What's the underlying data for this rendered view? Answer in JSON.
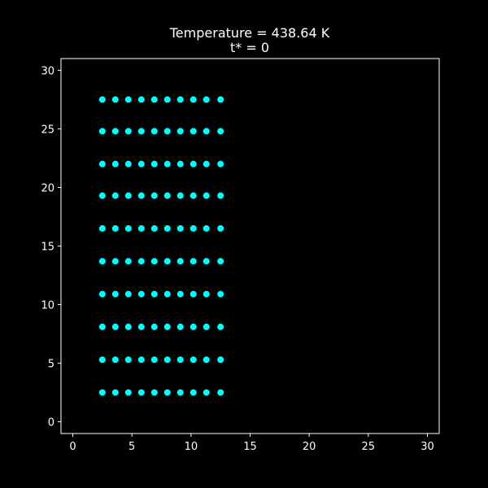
{
  "chart_data": {
    "type": "scatter",
    "title": "Temperature = 438.64 K",
    "subtitle": "t* = 0",
    "xlabel": "",
    "ylabel": "",
    "xlim": [
      -1,
      31
    ],
    "ylim": [
      -1,
      31
    ],
    "xticks": [
      0,
      5,
      10,
      15,
      20,
      25,
      30
    ],
    "yticks": [
      0,
      5,
      10,
      15,
      20,
      25,
      30
    ],
    "grid": false,
    "colors": {
      "background": "#000000",
      "axes": "#ffffff",
      "text": "#ffffff",
      "points": "#00ffff"
    },
    "series": [
      {
        "x_values": [
          2.5,
          3.6,
          4.7,
          5.8,
          6.9,
          8.0,
          9.1,
          10.2,
          11.3,
          12.5
        ],
        "y_values": [
          2.5,
          5.3,
          8.1,
          10.9,
          13.7,
          16.5,
          19.3,
          22.0,
          24.8,
          27.5
        ]
      }
    ]
  }
}
